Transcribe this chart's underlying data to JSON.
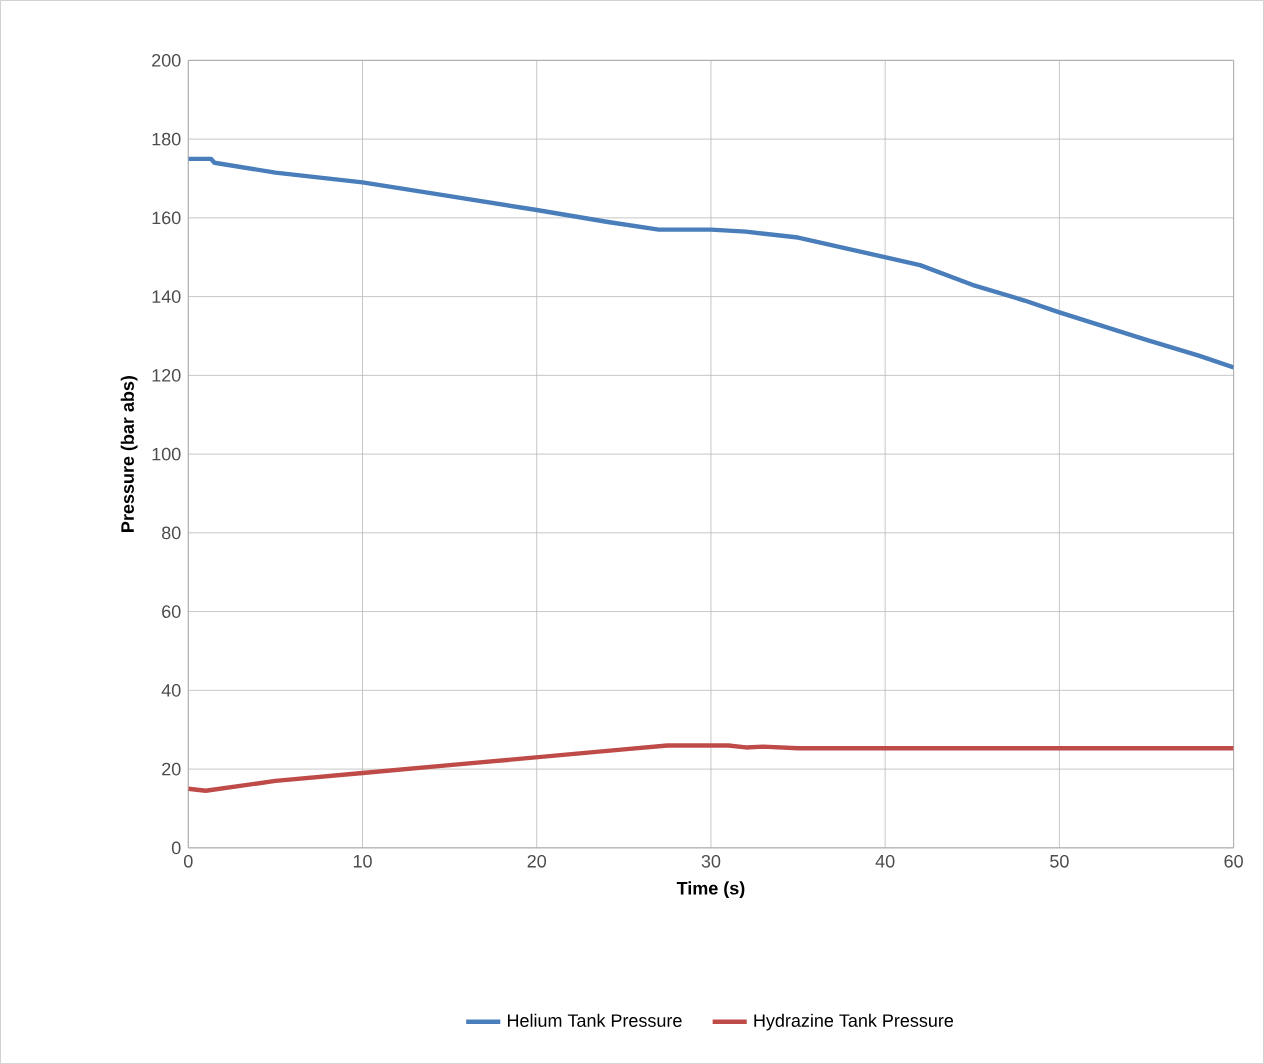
{
  "chart_data": {
    "type": "line",
    "xlabel": "Time (s)",
    "ylabel": "Pressure (bar abs)",
    "xlim": [
      0,
      60
    ],
    "ylim": [
      0,
      200
    ],
    "xticks": [
      0,
      10,
      20,
      30,
      40,
      50,
      60
    ],
    "yticks": [
      0,
      20,
      40,
      60,
      80,
      100,
      120,
      140,
      160,
      180,
      200
    ],
    "grid": true,
    "legend": "bottom",
    "marker": "none",
    "line_style": "solid",
    "series": [
      {
        "name": "Helium Tank Pressure",
        "color": "#4a7ebb",
        "x": [
          0,
          1.3,
          1.5,
          5,
          10,
          15,
          20,
          24,
          27,
          30,
          32,
          35,
          38,
          40,
          42,
          45,
          48,
          50,
          55,
          58,
          60
        ],
        "values": [
          175,
          175,
          174,
          171.5,
          169,
          165.5,
          162,
          159,
          157,
          157,
          156.5,
          155,
          152,
          150,
          148,
          143,
          139,
          136,
          129,
          125,
          122
        ]
      },
      {
        "name": "Hydrazine Tank Pressure",
        "color": "#be4b48",
        "x": [
          0,
          1,
          5,
          10,
          15,
          20,
          25,
          27.5,
          31,
          32,
          33,
          35,
          40,
          50,
          60
        ],
        "values": [
          15,
          14.5,
          17,
          19,
          21,
          23,
          25,
          26,
          26,
          25.5,
          25.7,
          25.3,
          25.3,
          25.3,
          25.3
        ]
      }
    ]
  }
}
